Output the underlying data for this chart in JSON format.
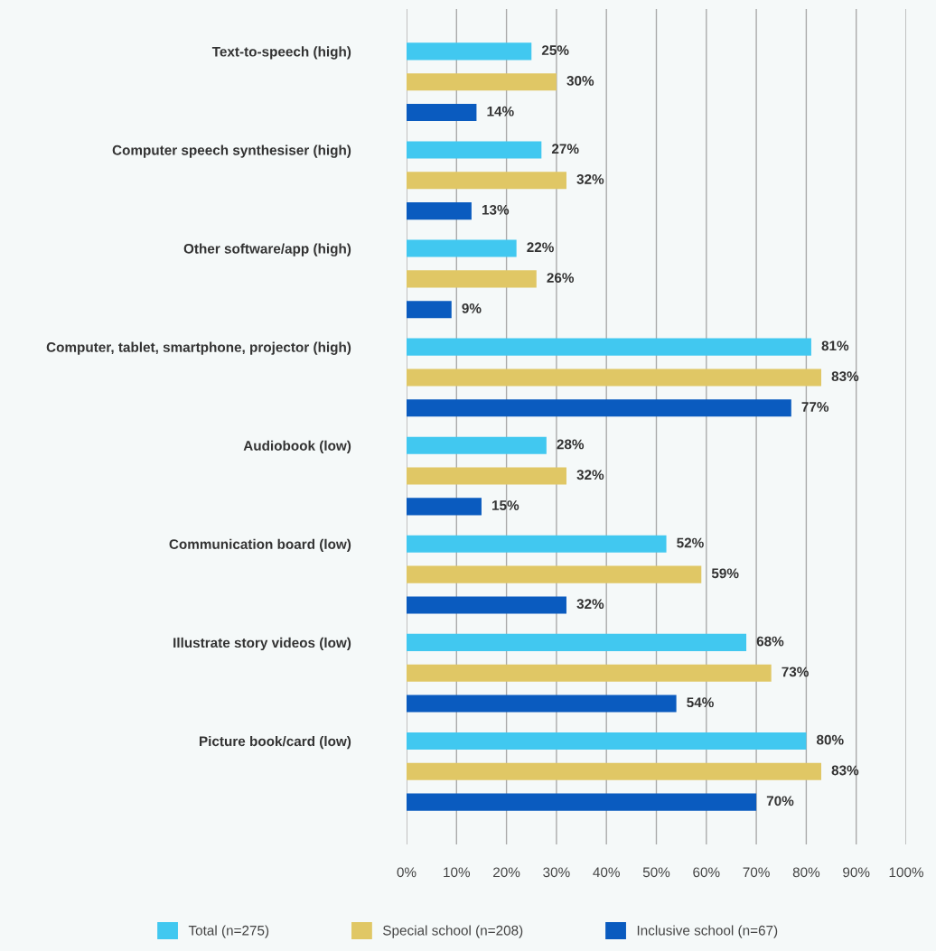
{
  "chart_data": {
    "type": "bar",
    "orientation": "horizontal",
    "categories": [
      "Text-to-speech (high)",
      "Computer speech synthesiser (high)",
      "Other software/app (high)",
      "Computer, tablet, smartphone, projector (high)",
      "Audiobook (low)",
      "Communication board (low)",
      "Illustrate story videos (low)",
      "Picture book/card (low)"
    ],
    "series": [
      {
        "name": "Total (n=275)",
        "color": "#41c8f0",
        "values": [
          25,
          27,
          22,
          81,
          28,
          52,
          68,
          80
        ],
        "value_labels": [
          "25%",
          "27%",
          "22%",
          "81%",
          "28%",
          "52%",
          "68%",
          "80%"
        ]
      },
      {
        "name": "Special school (n=208)",
        "color": "#e0c765",
        "values": [
          30,
          32,
          26,
          83,
          32,
          59,
          73,
          83
        ],
        "value_labels": [
          "30%",
          "32%",
          "26%",
          "83%",
          "32%",
          "59%",
          "73%",
          "83%"
        ]
      },
      {
        "name": "Inclusive school (n=67)",
        "color": "#0a5bbf",
        "values": [
          14,
          13,
          9,
          77,
          15,
          32,
          54,
          70
        ],
        "value_labels": [
          "14%",
          "13%",
          "9%",
          "77%",
          "15%",
          "32%",
          "54%",
          "70%"
        ]
      }
    ],
    "xlim": [
      0,
      100
    ],
    "xticks": [
      {
        "value": 0,
        "label": "0%"
      },
      {
        "value": 10,
        "label": "10%"
      },
      {
        "value": 20,
        "label": "20%"
      },
      {
        "value": 30,
        "label": "30%"
      },
      {
        "value": 40,
        "label": "40%"
      },
      {
        "value": 50,
        "label": "50%"
      },
      {
        "value": 60,
        "label": "60%"
      },
      {
        "value": 70,
        "label": "70%"
      },
      {
        "value": 80,
        "label": "80%"
      },
      {
        "value": 90,
        "label": "90%"
      },
      {
        "value": 100,
        "label": "100%"
      }
    ],
    "grid": "x",
    "legend": "bottom"
  }
}
